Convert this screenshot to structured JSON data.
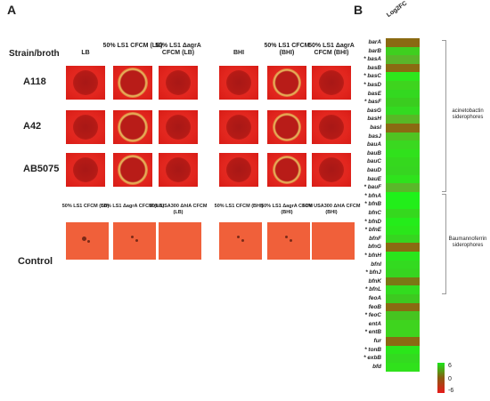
{
  "panel_a": {
    "letter": "A",
    "header_label": "Strain/broth",
    "columns": [
      "LB",
      "50% LS1 CFCM (LB)",
      "50% LS1 ΔagrA CFCM (LB)",
      "BHI",
      "50% LS1 CFCM (BHI)",
      "50% LS1 ΔagrA CFCM (BHI)"
    ],
    "strains": [
      "A118",
      "A42",
      "AB5075"
    ],
    "control_label": "Control",
    "control_columns": [
      "50% LS1 CFCM (LB)",
      "50% LS1 ΔagrA CFCM (LB)",
      "50% USA300 ΔhlA CFCM (LB)",
      "50% LS1 CFCM (BHI)",
      "50% LS1 ΔagrA CFCM (BHI)",
      "50% USA300 ΔhlA CFCM (BHI)"
    ]
  },
  "panel_b": {
    "letter": "B",
    "column_label": "Log2FC",
    "genes": [
      {
        "name": "barA",
        "star": false
      },
      {
        "name": "barB",
        "star": false
      },
      {
        "name": "basA",
        "star": true
      },
      {
        "name": "basB",
        "star": false
      },
      {
        "name": "basC",
        "star": true
      },
      {
        "name": "basD",
        "star": true
      },
      {
        "name": "basE",
        "star": false
      },
      {
        "name": "basF",
        "star": true
      },
      {
        "name": "basG",
        "star": false
      },
      {
        "name": "basH",
        "star": false
      },
      {
        "name": "basI",
        "star": false
      },
      {
        "name": "basJ",
        "star": false
      },
      {
        "name": "bauA",
        "star": false
      },
      {
        "name": "bauB",
        "star": false
      },
      {
        "name": "bauC",
        "star": false
      },
      {
        "name": "bauD",
        "star": false
      },
      {
        "name": "bauE",
        "star": false
      },
      {
        "name": "bauF",
        "star": true
      },
      {
        "name": "bfnA",
        "star": true
      },
      {
        "name": "bfnB",
        "star": true
      },
      {
        "name": "bfnC",
        "star": false
      },
      {
        "name": "bfnD",
        "star": true
      },
      {
        "name": "bfnE",
        "star": true
      },
      {
        "name": "bfnF",
        "star": false
      },
      {
        "name": "bfnG",
        "star": false
      },
      {
        "name": "bfnH",
        "star": true
      },
      {
        "name": "bfnI",
        "star": false
      },
      {
        "name": "bfnJ",
        "star": true
      },
      {
        "name": "bfnK",
        "star": false
      },
      {
        "name": "bfnL",
        "star": true
      },
      {
        "name": "feoA",
        "star": false
      },
      {
        "name": "feoB",
        "star": false
      },
      {
        "name": "feoC",
        "star": true
      },
      {
        "name": "entA",
        "star": false
      },
      {
        "name": "entB",
        "star": true
      },
      {
        "name": "fur",
        "star": false
      },
      {
        "name": "tonB",
        "star": true
      },
      {
        "name": "exbB",
        "star": true
      },
      {
        "name": "bfd",
        "star": false
      }
    ],
    "groups": [
      {
        "label": "acinetobactin siderophores"
      },
      {
        "label": "Baumannoferrin siderophores"
      }
    ],
    "colors": {
      "high": "#19e619",
      "mid": "#8a5a10",
      "low": "#e61a1a"
    },
    "colorbar_ticks": [
      "6",
      "0",
      "-6"
    ]
  }
}
